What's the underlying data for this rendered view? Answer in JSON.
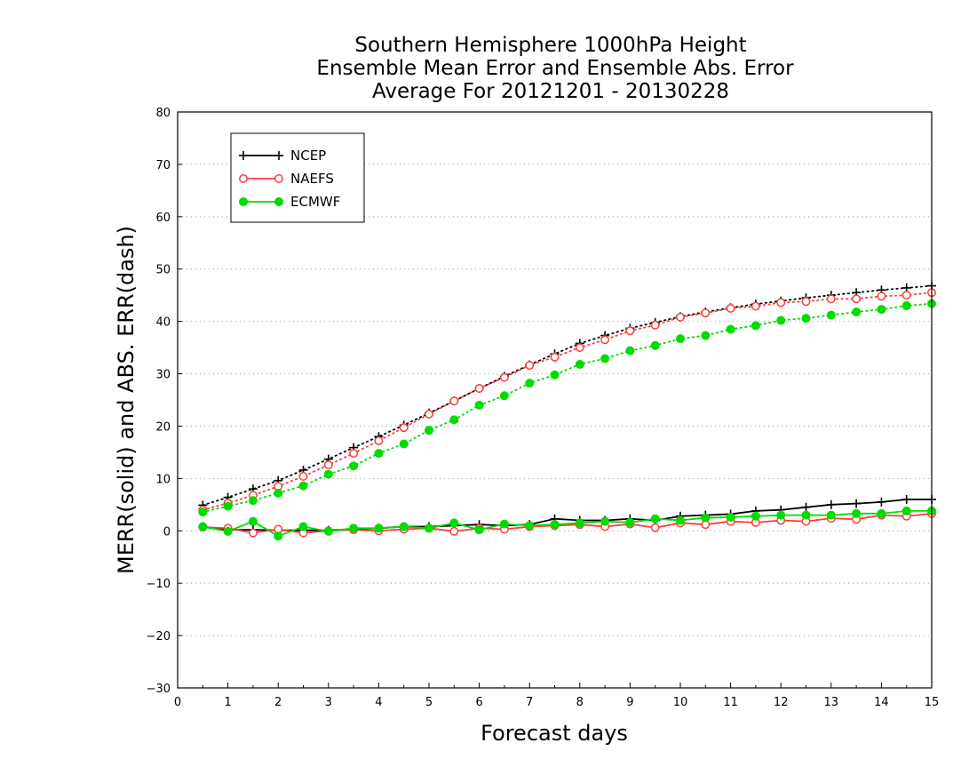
{
  "colors": {
    "NCEP": "#000000",
    "NAEFS": "#ff3b3b",
    "ECMWF": "#00dc00",
    "grid": "#9a9a9a"
  },
  "chart_data": {
    "type": "line",
    "title": [
      "Southern Hemisphere 1000hPa Height",
      "Ensemble Mean Error and Ensemble Abs. Error",
      "Average For 20121201 - 20130228"
    ],
    "xlabel": "Forecast days",
    "ylabel": "MERR(solid) and ABS. ERR(dash)",
    "xlim": [
      0,
      15
    ],
    "ylim": [
      -30,
      80
    ],
    "xticks": [
      "0",
      "1",
      "2",
      "3",
      "4",
      "5",
      "6",
      "7",
      "8",
      "9",
      "10",
      "11",
      "12",
      "13",
      "14",
      "15"
    ],
    "yticks": [
      "−30",
      "−20",
      "−10",
      "0",
      "10",
      "20",
      "30",
      "40",
      "50",
      "60",
      "70",
      "80"
    ],
    "grid": "horizontal dotted",
    "legend_position": "top-left",
    "legend": [
      "NCEP",
      "NAEFS",
      "ECMWF"
    ],
    "x": [
      0.5,
      1,
      1.5,
      2,
      2.5,
      3,
      3.5,
      4,
      4.5,
      5,
      5.5,
      6,
      6.5,
      7,
      7.5,
      8,
      8.5,
      9,
      9.5,
      10,
      10.5,
      11,
      11.5,
      12,
      12.5,
      13,
      13.5,
      14,
      14.5,
      15
    ],
    "series": [
      {
        "name": "NCEP",
        "style": "solid",
        "marker": "plus",
        "values": [
          0.8,
          0.2,
          0.2,
          0.1,
          0.1,
          0.1,
          0.3,
          0.5,
          0.8,
          0.8,
          1.0,
          1.2,
          1.0,
          1.2,
          2.3,
          2.0,
          2.0,
          2.3,
          2.0,
          2.8,
          3.0,
          3.2,
          3.8,
          4.0,
          4.5,
          5.0,
          5.2,
          5.5,
          6.0,
          6.0
        ]
      },
      {
        "name": "NAEFS",
        "style": "solid",
        "marker": "open-circle",
        "values": [
          0.7,
          0.5,
          -0.4,
          0.3,
          -0.4,
          0.0,
          0.2,
          0.0,
          0.3,
          0.5,
          -0.1,
          0.5,
          0.3,
          0.8,
          1.0,
          1.2,
          0.8,
          1.3,
          0.6,
          1.5,
          1.2,
          1.8,
          1.6,
          2.0,
          1.8,
          2.4,
          2.2,
          3.0,
          2.8,
          3.3
        ]
      },
      {
        "name": "ECMWF",
        "style": "solid",
        "marker": "filled-circle",
        "values": [
          0.8,
          -0.1,
          1.8,
          -1.0,
          0.8,
          -0.1,
          0.5,
          0.5,
          0.8,
          0.5,
          1.5,
          0.2,
          1.3,
          1.0,
          1.2,
          1.5,
          1.8,
          1.6,
          2.3,
          2.0,
          2.5,
          2.6,
          2.8,
          3.0,
          3.0,
          3.0,
          3.3,
          3.3,
          3.8,
          3.8
        ]
      },
      {
        "name": "NCEP",
        "style": "dotted",
        "marker": "plus",
        "values": [
          4.9,
          6.4,
          8.0,
          9.6,
          11.6,
          13.7,
          15.9,
          18.0,
          20.2,
          22.5,
          24.8,
          27.2,
          29.5,
          31.7,
          33.8,
          35.8,
          37.3,
          38.7,
          39.8,
          40.9,
          41.8,
          42.6,
          43.3,
          43.9,
          44.5,
          45.0,
          45.5,
          46.0,
          46.4,
          46.8
        ]
      },
      {
        "name": "NAEFS",
        "style": "dotted",
        "marker": "open-circle",
        "values": [
          4.0,
          5.3,
          6.8,
          8.5,
          10.4,
          12.6,
          14.8,
          17.2,
          19.7,
          22.3,
          24.8,
          27.2,
          29.3,
          31.6,
          33.2,
          35.0,
          36.5,
          38.2,
          39.3,
          40.8,
          41.6,
          42.5,
          42.9,
          43.6,
          43.8,
          44.3,
          44.3,
          44.8,
          45.0,
          45.5
        ]
      },
      {
        "name": "ECMWF",
        "style": "dotted",
        "marker": "filled-circle",
        "values": [
          3.6,
          4.7,
          5.8,
          7.2,
          8.6,
          10.8,
          12.4,
          14.8,
          16.6,
          19.2,
          21.2,
          24.0,
          25.8,
          28.2,
          29.8,
          31.8,
          32.9,
          34.4,
          35.4,
          36.7,
          37.3,
          38.5,
          39.2,
          40.2,
          40.6,
          41.2,
          41.8,
          42.3,
          43.0,
          43.4
        ]
      }
    ]
  }
}
